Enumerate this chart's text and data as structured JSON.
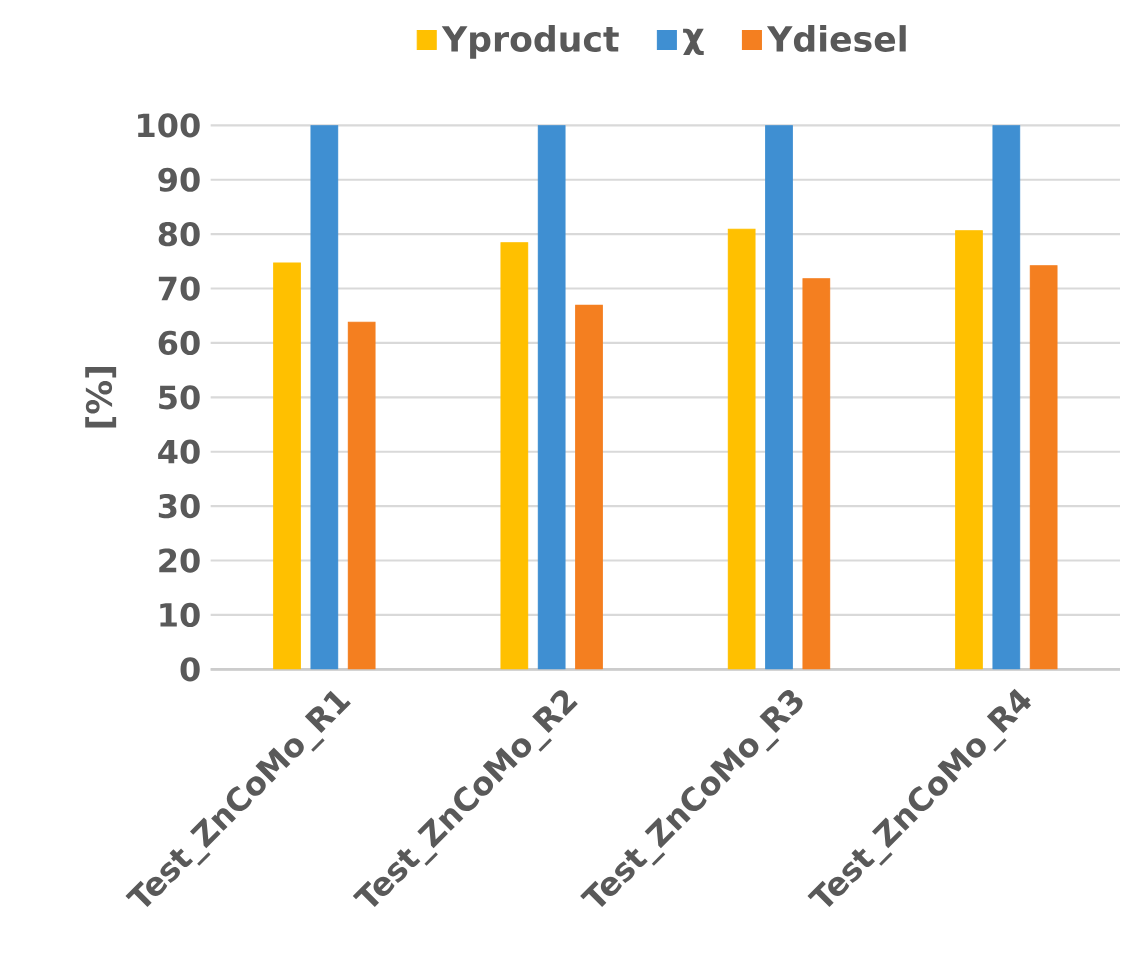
{
  "chart_data": {
    "type": "bar",
    "ylabel": "[%]",
    "categories": [
      "Test_ZnCoMo_R1",
      "Test_ZnCoMo_R2",
      "Test_ZnCoMo_R3",
      "Test_ZnCoMo_R4"
    ],
    "series": [
      {
        "name": "Yproduct",
        "color": "#ffc000",
        "values": [
          74.7,
          78.4,
          80.9,
          80.6
        ]
      },
      {
        "name": "χ",
        "color": "#3f8fd2",
        "values": [
          100,
          100,
          100,
          100
        ]
      },
      {
        "name": "Ydiesel",
        "color": "#f47f20",
        "values": [
          63.8,
          66.9,
          71.8,
          74.2
        ]
      }
    ],
    "ylim": [
      0,
      100
    ],
    "yticks": [
      0,
      10,
      20,
      30,
      40,
      50,
      60,
      70,
      80,
      90,
      100
    ],
    "grid": "y",
    "legend": "top"
  }
}
